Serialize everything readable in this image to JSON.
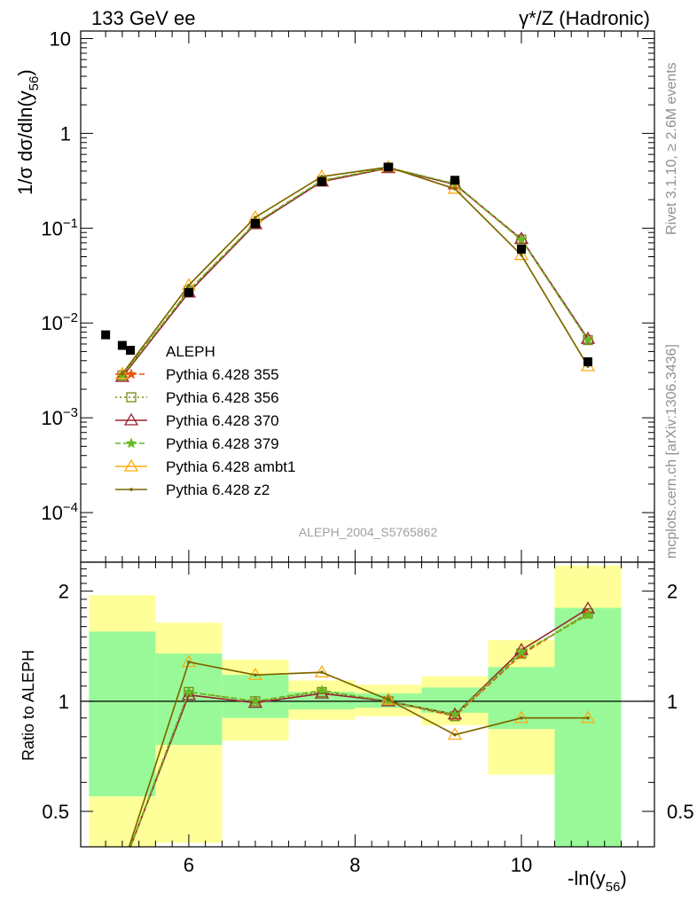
{
  "header": {
    "left": "133 GeV ee",
    "right": "γ*/Z (Hadronic)"
  },
  "side_text": {
    "top": "Rivet 3.1.10, ≥ 2.6M events",
    "bottom": "mcplots.cern.ch [arXiv:1306.3436]"
  },
  "analysis_label": "ALEPH_2004_S5765862",
  "ratio_ylabel": "Ratio to ALEPH",
  "chart_data": [
    {
      "type": "scatter",
      "title": "133 GeV ee",
      "ylabel": "1/σ dσ/dln(y56)",
      "xlabel": "-ln(y56)",
      "yscale": "log",
      "xlim": [
        4.7,
        11.6
      ],
      "ylim": [
        3e-05,
        12
      ],
      "x_ticks": [
        6,
        8,
        10
      ],
      "y_ticks": [
        {
          "v": 10,
          "t": "10"
        },
        {
          "v": 1,
          "t": "1"
        },
        {
          "v": 0.1,
          "t": "10",
          "e": "−1"
        },
        {
          "v": 0.01,
          "t": "10",
          "e": "−2"
        },
        {
          "v": 0.001,
          "t": "10",
          "e": "−3"
        },
        {
          "v": 0.0001,
          "t": "10",
          "e": "−4"
        }
      ],
      "data": {
        "name": "ALEPH",
        "color": "#000000",
        "x": [
          5.0,
          5.2,
          6.0,
          6.8,
          7.6,
          8.4,
          9.2,
          10.0,
          10.8
        ],
        "y": [
          0.0075,
          0.0058,
          0.021,
          0.112,
          0.31,
          0.44,
          0.32,
          0.06,
          0.0039
        ]
      },
      "x": [
        5.2,
        6.0,
        6.8,
        7.6,
        8.4,
        9.2,
        10.0,
        10.8
      ],
      "series": [
        {
          "name": "Pythia 6.428 355",
          "color": "#ee5511",
          "dash": "6,3",
          "marker": "star",
          "y": [
            0.0028,
            0.022,
            0.113,
            0.318,
            0.436,
            0.29,
            0.075,
            0.0066
          ]
        },
        {
          "name": "Pythia 6.428 356",
          "color": "#778811",
          "dash": "2,3",
          "marker": "square",
          "y": [
            0.0028,
            0.022,
            0.112,
            0.315,
            0.435,
            0.29,
            0.076,
            0.0066
          ]
        },
        {
          "name": "Pythia 6.428 370",
          "color": "#992233",
          "dash": "",
          "marker": "triangle",
          "y": [
            0.0027,
            0.021,
            0.11,
            0.31,
            0.43,
            0.29,
            0.077,
            0.0068
          ]
        },
        {
          "name": "Pythia 6.428 379",
          "color": "#66bb22",
          "dash": "6,3",
          "marker": "star",
          "y": [
            0.0028,
            0.022,
            0.113,
            0.318,
            0.436,
            0.295,
            0.076,
            0.0066
          ]
        },
        {
          "name": "Pythia 6.428 ambt1",
          "color": "#ffaa11",
          "dash": "",
          "marker": "triangle",
          "y": [
            0.0029,
            0.025,
            0.13,
            0.35,
            0.44,
            0.26,
            0.052,
            0.0035
          ]
        },
        {
          "name": "Pythia 6.428 z2",
          "color": "#776600",
          "dash": "",
          "marker": "dot",
          "y": [
            0.0029,
            0.025,
            0.13,
            0.35,
            0.44,
            0.26,
            0.052,
            0.0035
          ]
        }
      ]
    },
    {
      "type": "line",
      "ylabel": "Ratio to ALEPH",
      "xlabel": "-ln(y56)",
      "yscale": "log",
      "ylim": [
        0.4,
        2.4
      ],
      "y_ticks": [
        {
          "v": 2,
          "t": "2"
        },
        {
          "v": 1,
          "t": "1"
        },
        {
          "v": 0.5,
          "t": "0.5"
        }
      ],
      "bands": [
        {
          "x0": 4.8,
          "x1": 5.6,
          "lo1": 0.55,
          "hi1": 1.55,
          "lo2": 0.3,
          "hi2": 1.95
        },
        {
          "x0": 5.6,
          "x1": 6.4,
          "lo1": 0.76,
          "hi1": 1.35,
          "lo2": 0.41,
          "hi2": 1.64
        },
        {
          "x0": 6.4,
          "x1": 7.2,
          "lo1": 0.9,
          "hi1": 1.18,
          "lo2": 0.78,
          "hi2": 1.3
        },
        {
          "x0": 7.2,
          "x1": 8.0,
          "lo1": 0.95,
          "hi1": 1.06,
          "lo2": 0.89,
          "hi2": 1.14
        },
        {
          "x0": 8.0,
          "x1": 8.8,
          "lo1": 0.96,
          "hi1": 1.05,
          "lo2": 0.91,
          "hi2": 1.11
        },
        {
          "x0": 8.8,
          "x1": 9.6,
          "lo1": 0.93,
          "hi1": 1.09,
          "lo2": 0.86,
          "hi2": 1.17
        },
        {
          "x0": 9.6,
          "x1": 10.4,
          "lo1": 0.84,
          "hi1": 1.24,
          "lo2": 0.63,
          "hi2": 1.47
        },
        {
          "x0": 10.4,
          "x1": 11.2,
          "lo1": 0.3,
          "hi1": 1.8,
          "lo2": 0.3,
          "hi2": 2.35
        }
      ],
      "x": [
        5.2,
        6.0,
        6.8,
        7.6,
        8.4,
        9.2,
        10.0,
        10.8
      ],
      "series": [
        {
          "name": "Pythia 6.428 355",
          "values": [
            0.35,
            1.06,
            1.0,
            1.07,
            1.0,
            0.91,
            1.34,
            1.74
          ]
        },
        {
          "name": "Pythia 6.428 356",
          "values": [
            0.35,
            1.06,
            1.0,
            1.06,
            1.0,
            0.91,
            1.35,
            1.74
          ]
        },
        {
          "name": "Pythia 6.428 370",
          "values": [
            0.35,
            1.04,
            0.99,
            1.05,
            1.0,
            0.92,
            1.38,
            1.79
          ]
        },
        {
          "name": "Pythia 6.428 379",
          "values": [
            0.35,
            1.06,
            1.0,
            1.07,
            1.0,
            0.92,
            1.36,
            1.72
          ]
        },
        {
          "name": "Pythia 6.428 ambt1",
          "values": [
            0.35,
            1.28,
            1.18,
            1.2,
            1.01,
            0.81,
            0.9,
            0.9
          ]
        },
        {
          "name": "Pythia 6.428 z2",
          "values": [
            0.35,
            1.28,
            1.18,
            1.2,
            1.01,
            0.81,
            0.9,
            0.9
          ]
        }
      ]
    }
  ]
}
